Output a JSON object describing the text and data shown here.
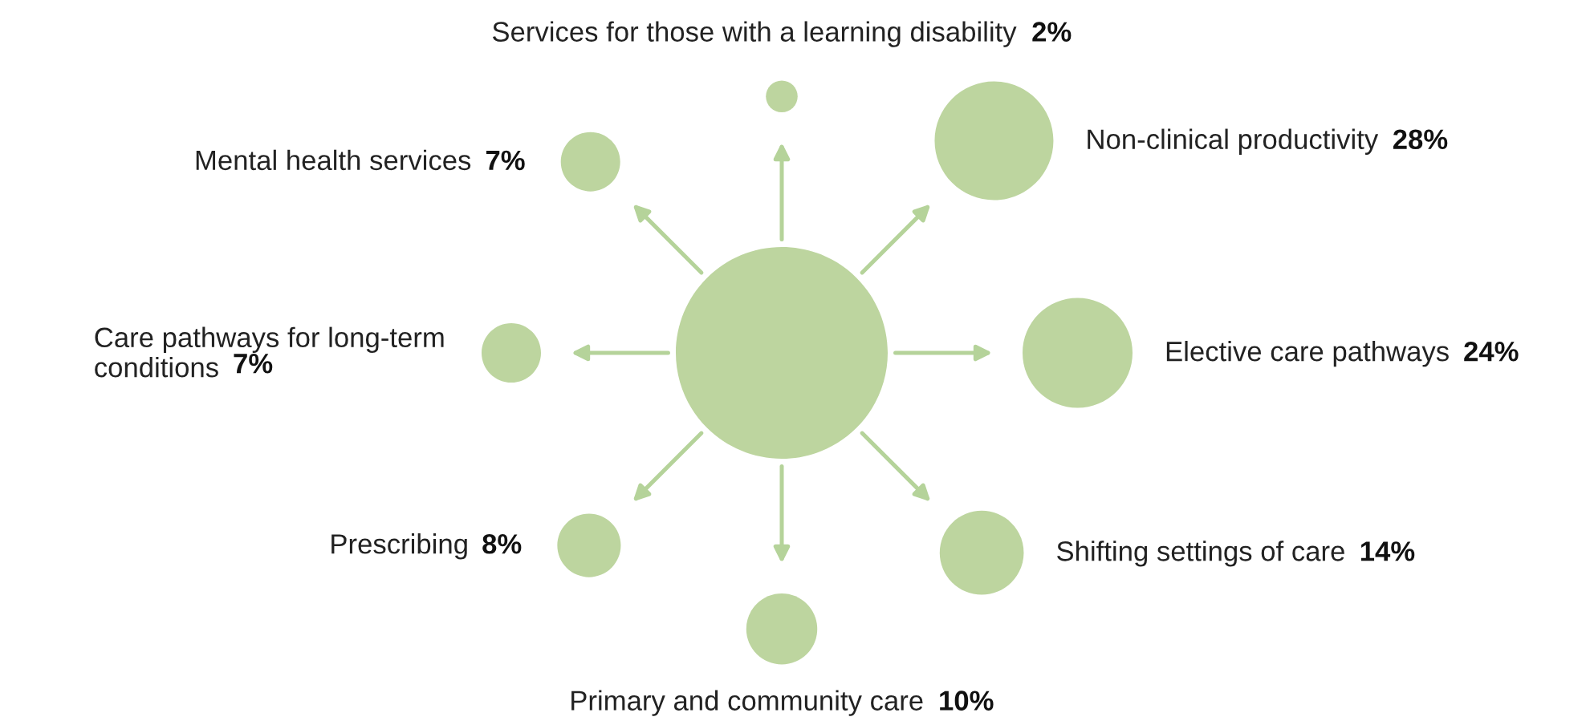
{
  "chart_data": {
    "type": "other",
    "categories": [
      "Services for those with a learning disability",
      "Non-clinical productivity",
      "Elective care pathways",
      "Shifting settings of care",
      "Primary and community care",
      "Prescribing",
      "Care pathways for long-term\nconditions",
      "Mental health services"
    ],
    "values": [
      2,
      28,
      24,
      14,
      10,
      8,
      7,
      7
    ],
    "value_labels": [
      "2%",
      "28%",
      "24%",
      "14%",
      "10%",
      "8%",
      "7%",
      "7%"
    ],
    "color": "#bdd59f"
  }
}
